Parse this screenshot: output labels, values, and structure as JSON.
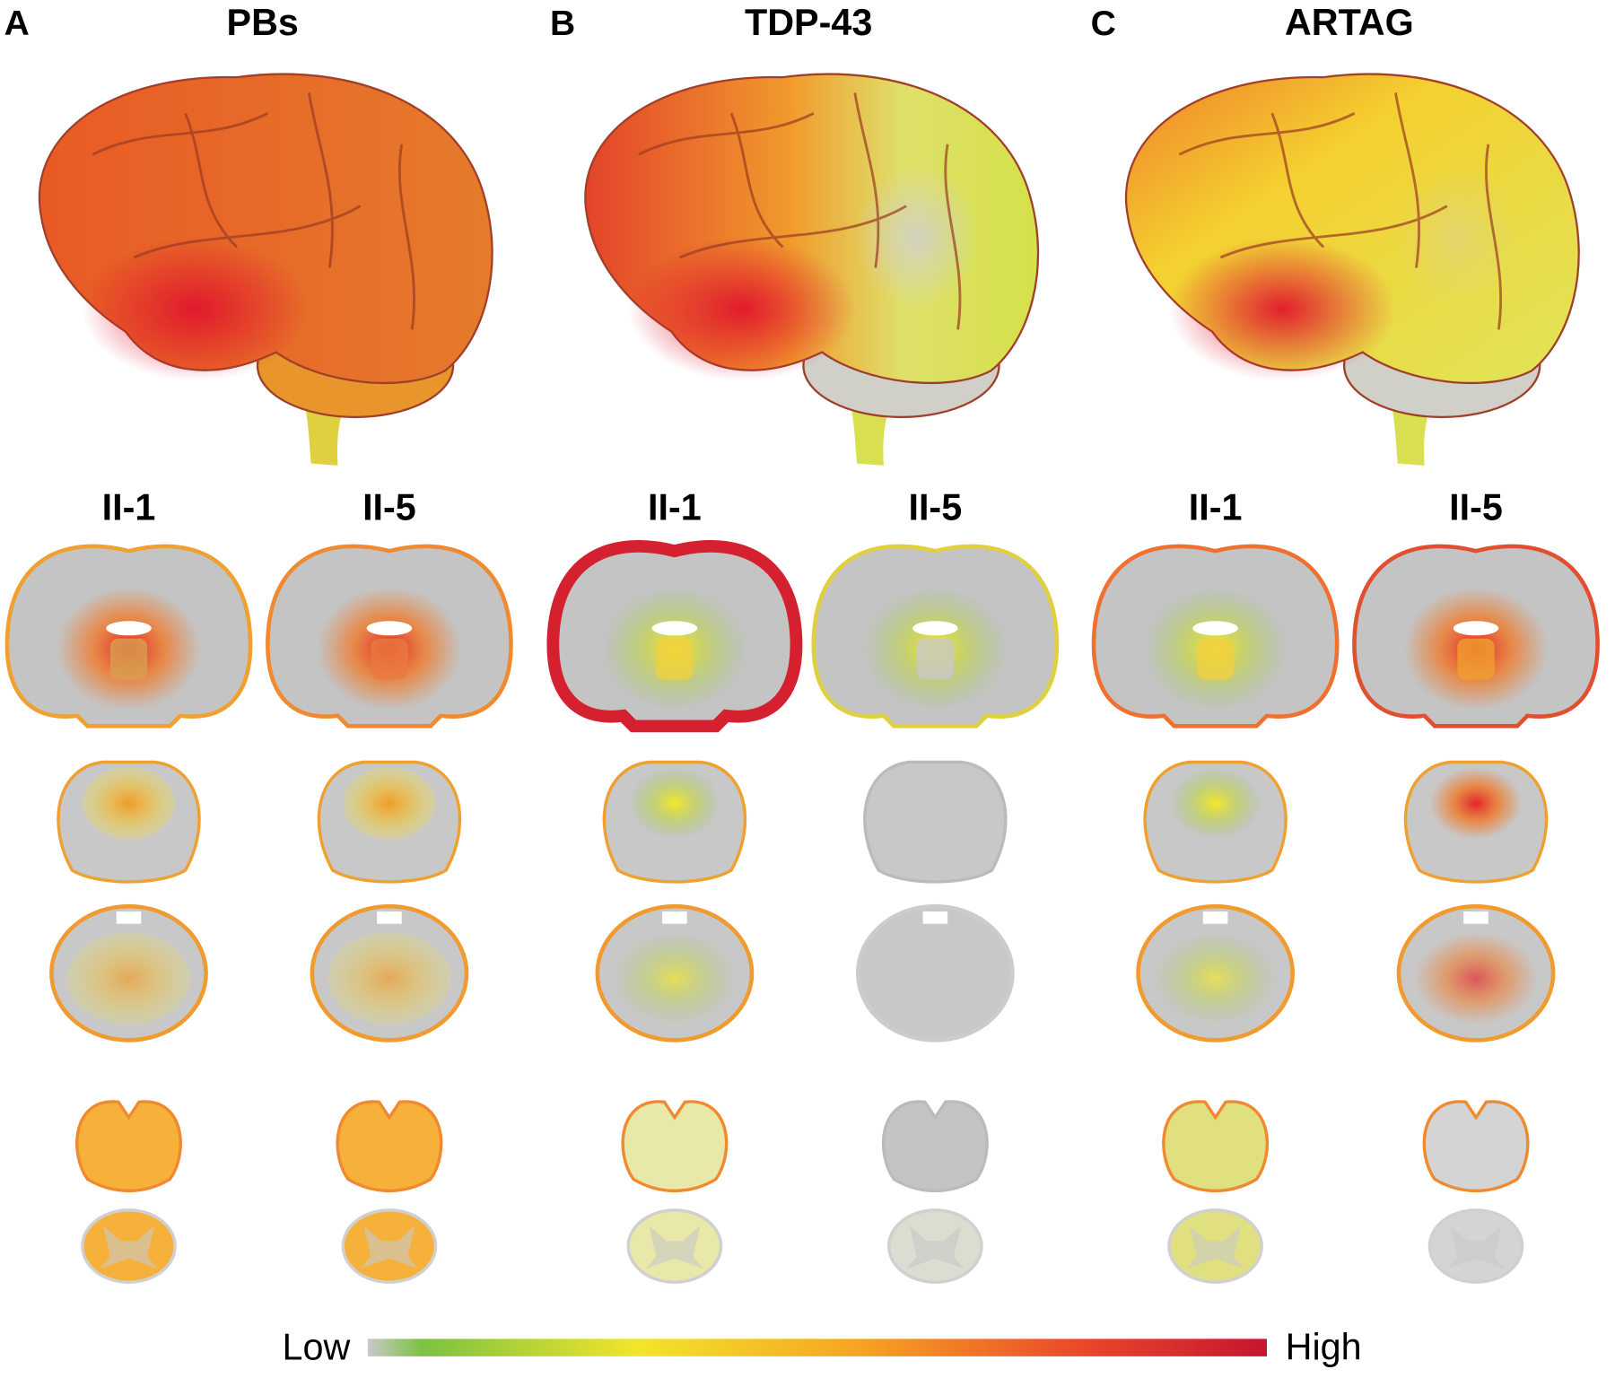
{
  "panels": [
    {
      "letter": "A",
      "title": "PBs",
      "cases": [
        "II-1",
        "II-5"
      ]
    },
    {
      "letter": "B",
      "title": "TDP-43",
      "cases": [
        "II-1",
        "II-5"
      ]
    },
    {
      "letter": "C",
      "title": "ARTAG",
      "cases": [
        "II-1",
        "II-5"
      ]
    }
  ],
  "legend": {
    "low": "Low",
    "high": "High"
  }
}
